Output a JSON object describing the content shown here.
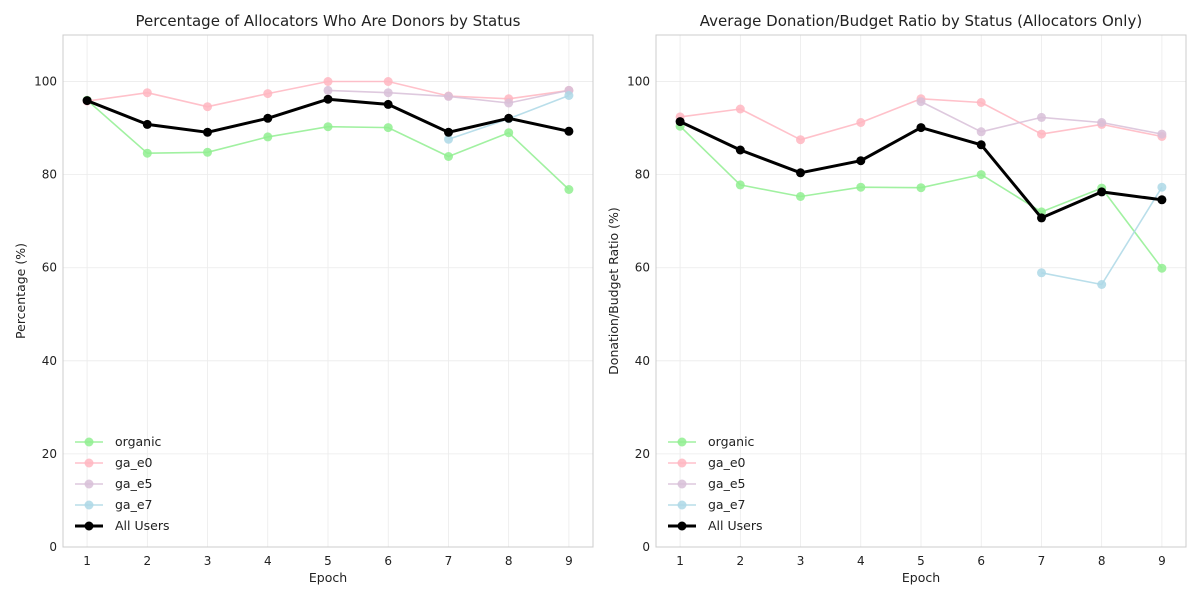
{
  "chart_data": [
    {
      "type": "line",
      "title": "Percentage of Allocators Who Are Donors by Status",
      "xlabel": "Epoch",
      "ylabel": "Percentage (%)",
      "x": [
        1,
        2,
        3,
        4,
        5,
        6,
        7,
        8,
        9
      ],
      "xlim": [
        0.6,
        9.4
      ],
      "ylim": [
        0,
        110
      ],
      "yticks": [
        0,
        20,
        40,
        60,
        80,
        100
      ],
      "grid": true,
      "legend_position": "lower-left",
      "series": [
        {
          "name": "organic",
          "color": "#90ee90",
          "values": [
            96,
            84.6,
            84.8,
            88.1,
            90.3,
            90.1,
            83.9,
            89.0,
            76.8
          ]
        },
        {
          "name": "ga_e0",
          "color": "#ffb6c1",
          "values": [
            95.8,
            97.6,
            94.6,
            97.4,
            100,
            100,
            96.9,
            96.3,
            98.1
          ]
        },
        {
          "name": "ga_e5",
          "color": "#d8bfd8",
          "values": [
            null,
            null,
            null,
            null,
            98.1,
            97.6,
            96.8,
            95.4,
            98.1
          ]
        },
        {
          "name": "ga_e7",
          "color": "#add8e6",
          "values": [
            null,
            null,
            null,
            null,
            null,
            null,
            87.6,
            92.0,
            97.0
          ]
        },
        {
          "name": "All Users",
          "color": "#000000",
          "bold": true,
          "values": [
            95.9,
            90.8,
            89.1,
            92.1,
            96.2,
            95.1,
            89.1,
            92.1,
            89.3
          ]
        }
      ]
    },
    {
      "type": "line",
      "title": "Average Donation/Budget Ratio by Status (Allocators Only)",
      "xlabel": "Epoch",
      "ylabel": "Donation/Budget Ratio (%)",
      "x": [
        1,
        2,
        3,
        4,
        5,
        6,
        7,
        8,
        9
      ],
      "xlim": [
        0.6,
        9.4
      ],
      "ylim": [
        0,
        110
      ],
      "yticks": [
        0,
        20,
        40,
        60,
        80,
        100
      ],
      "grid": true,
      "legend_position": "lower-left",
      "series": [
        {
          "name": "organic",
          "color": "#90ee90",
          "values": [
            90.4,
            77.8,
            75.3,
            77.3,
            77.2,
            80.0,
            72.0,
            77.1,
            59.9
          ]
        },
        {
          "name": "ga_e0",
          "color": "#ffb6c1",
          "values": [
            92.4,
            94.1,
            87.5,
            91.2,
            96.3,
            95.5,
            88.7,
            90.8,
            88.2
          ]
        },
        {
          "name": "ga_e5",
          "color": "#d8bfd8",
          "values": [
            null,
            null,
            null,
            null,
            95.7,
            89.2,
            92.3,
            91.2,
            88.7
          ]
        },
        {
          "name": "ga_e7",
          "color": "#add8e6",
          "values": [
            null,
            null,
            null,
            null,
            null,
            null,
            58.9,
            56.4,
            77.3
          ]
        },
        {
          "name": "All Users",
          "color": "#000000",
          "bold": true,
          "values": [
            91.4,
            85.3,
            80.4,
            83.0,
            90.1,
            86.4,
            70.7,
            76.3,
            74.6
          ]
        }
      ]
    }
  ]
}
